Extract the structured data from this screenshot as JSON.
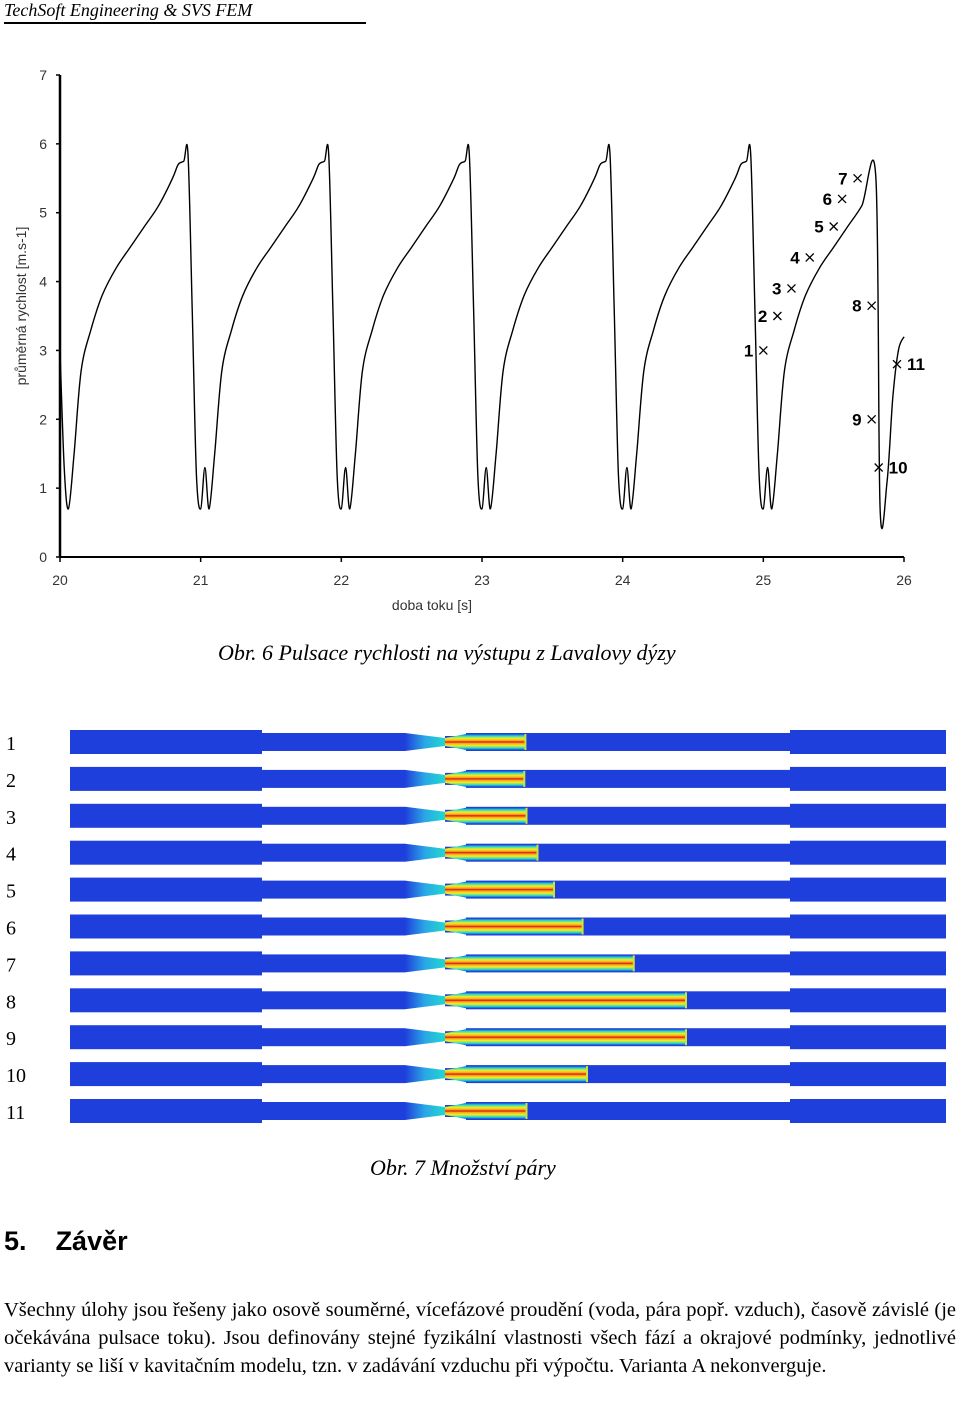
{
  "header": {
    "text": "TechSoft Engineering & SVS FEM"
  },
  "chart_data": {
    "type": "line",
    "xlabel": "doba toku [s]",
    "ylabel": "průměrná rychlost [m.s-1]",
    "xlim": [
      20,
      26
    ],
    "ylim": [
      0,
      7
    ],
    "x_ticks": [
      "20",
      "21",
      "22",
      "23",
      "24",
      "25",
      "26"
    ],
    "y_ticks": [
      "0",
      "1",
      "2",
      "3",
      "4",
      "5",
      "6",
      "7"
    ],
    "grid": false,
    "period": 1.0,
    "cycle_shape": {
      "x_offset": [
        0.0,
        0.03,
        0.06,
        0.1,
        0.15,
        0.22,
        0.3,
        0.4,
        0.5,
        0.6,
        0.7,
        0.8,
        0.84,
        0.88,
        0.91,
        0.94,
        0.97,
        1.0
      ],
      "y": [
        3.0,
        1.3,
        0.7,
        1.5,
        2.7,
        3.3,
        3.8,
        4.2,
        4.5,
        4.8,
        5.1,
        5.5,
        5.7,
        5.75,
        5.85,
        3.6,
        1.2,
        0.7
      ]
    },
    "cycle_start": 20.0,
    "cycles": 6,
    "final_segment": {
      "x": [
        25.83,
        25.88,
        25.92,
        25.96,
        26.0
      ],
      "y": [
        0.7,
        1.1,
        2.3,
        3.0,
        3.2
      ]
    },
    "annotations": [
      {
        "label": "1",
        "x": 25.0,
        "y": 3.0
      },
      {
        "label": "2",
        "x": 25.1,
        "y": 3.5
      },
      {
        "label": "3",
        "x": 25.2,
        "y": 3.9
      },
      {
        "label": "4",
        "x": 25.33,
        "y": 4.35
      },
      {
        "label": "5",
        "x": 25.5,
        "y": 4.8
      },
      {
        "label": "6",
        "x": 25.56,
        "y": 5.2
      },
      {
        "label": "7",
        "x": 25.67,
        "y": 5.5
      },
      {
        "label": "8",
        "x": 25.77,
        "y": 3.65
      },
      {
        "label": "9",
        "x": 25.77,
        "y": 2.0
      },
      {
        "label": "10",
        "x": 25.82,
        "y": 1.3
      },
      {
        "label": "11",
        "x": 25.95,
        "y": 2.8
      }
    ]
  },
  "caption1": "Obr. 6 Pulsace rychlosti na výstupu z Lavalovy dýzy",
  "fig7": {
    "labels": [
      "1",
      "2",
      "3",
      "4",
      "5",
      "6",
      "7",
      "8",
      "9",
      "10",
      "11"
    ],
    "vapor_extent": [
      0.08,
      0.06,
      0.1,
      0.3,
      0.6,
      1.12,
      2.05,
      3.0,
      3.0,
      1.2,
      0.1
    ]
  },
  "caption2": "Obr. 7 Množství páry",
  "section": {
    "number": "5.",
    "title": "Závěr"
  },
  "body": "Všechny úlohy jsou řešeny jako osově souměrné, vícefázové proudění (voda, pára popř. vzduch), časově závislé (je očekávána pulsace toku). Jsou definovány stejné fyzikální vlastnosti všech fází a okrajové podmínky, jednotlivé varianty se liší v kavitačním modelu, tzn. v zadávání vzduchu při výpočtu. Varianta A nekonverguje.",
  "colors": {
    "water": "#1f3fdc",
    "vapor_core": "#d9141b",
    "vapor_mid": "#f6ee1a",
    "nozzle_cyan": "#20d8d0"
  }
}
